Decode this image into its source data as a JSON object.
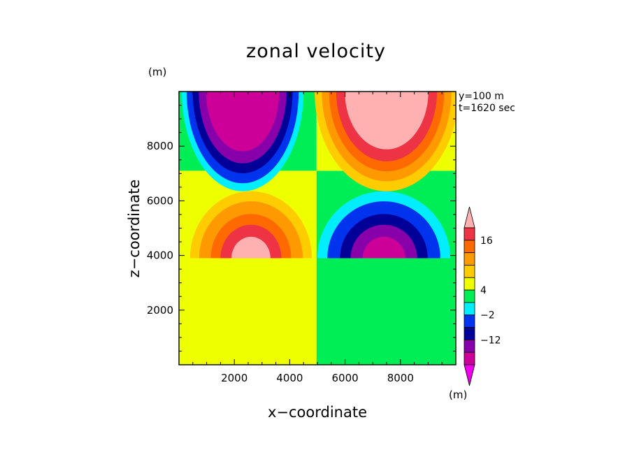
{
  "title": "zonal velocity",
  "axis_unit_z": "(m)",
  "xlabel": "x−coordinate",
  "ylabel": "z−coordinate",
  "info": {
    "y": "y=100 m",
    "t": "t=1620 sec"
  },
  "colorbar": {
    "unit": "(m)",
    "labels": [
      "16",
      "4",
      "−2",
      "−12"
    ],
    "colors": [
      "#ffb0b0",
      "#ee3344",
      "#ff6a00",
      "#ff9900",
      "#ffcc00",
      "#eeff00",
      "#00ee55",
      "#00eeff",
      "#0033ee",
      "#000099",
      "#8800aa",
      "#cc0099",
      "#ee00ee"
    ]
  },
  "chart_data": {
    "type": "heatmap",
    "title": "zonal velocity",
    "xlabel": "x−coordinate",
    "ylabel": "z−coordinate",
    "xlim": [
      0,
      10000
    ],
    "ylim": [
      0,
      10000
    ],
    "xticks": [
      2000,
      4000,
      6000,
      8000
    ],
    "yticks": [
      2000,
      4000,
      6000,
      8000
    ],
    "colorbar_ticks": [
      16,
      4,
      -2,
      -12
    ],
    "field": "zonal velocity u(x,z): positive upper-right and lower-left lobes, negative upper-left and lower-right lobes, discontinuity near x=5000"
  }
}
